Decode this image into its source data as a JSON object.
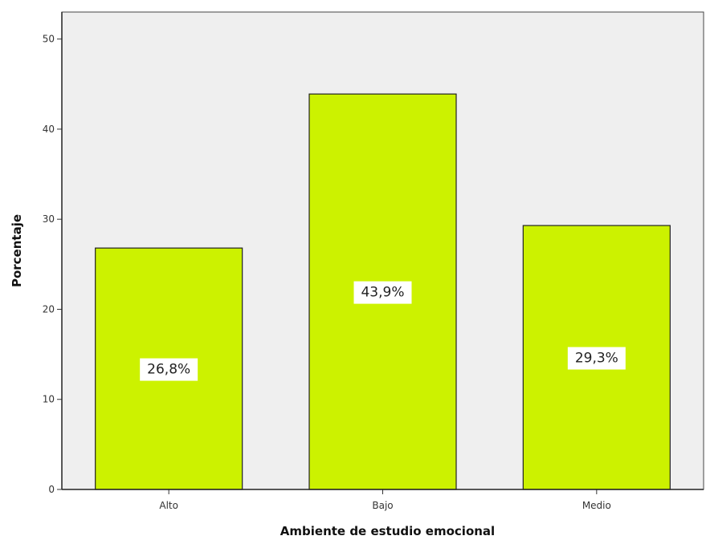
{
  "chart_data": {
    "type": "bar",
    "title": "",
    "xlabel": "Ambiente de estudio emocional",
    "ylabel": "Porcentaje",
    "categories": [
      "Alto",
      "Bajo",
      "Medio"
    ],
    "values": [
      26.8,
      43.9,
      29.3
    ],
    "data_labels": [
      "26,8%",
      "43,9%",
      "29,3%"
    ],
    "yticks": [
      "0",
      "10",
      "20",
      "30",
      "40",
      "50"
    ],
    "ylim": [
      0,
      53
    ],
    "grid": false,
    "legend": "none",
    "colors": {
      "bar": "#ccf200",
      "bar_stroke": "#222222",
      "plot_background": "#efefef",
      "label_background": "#ffffff"
    }
  }
}
